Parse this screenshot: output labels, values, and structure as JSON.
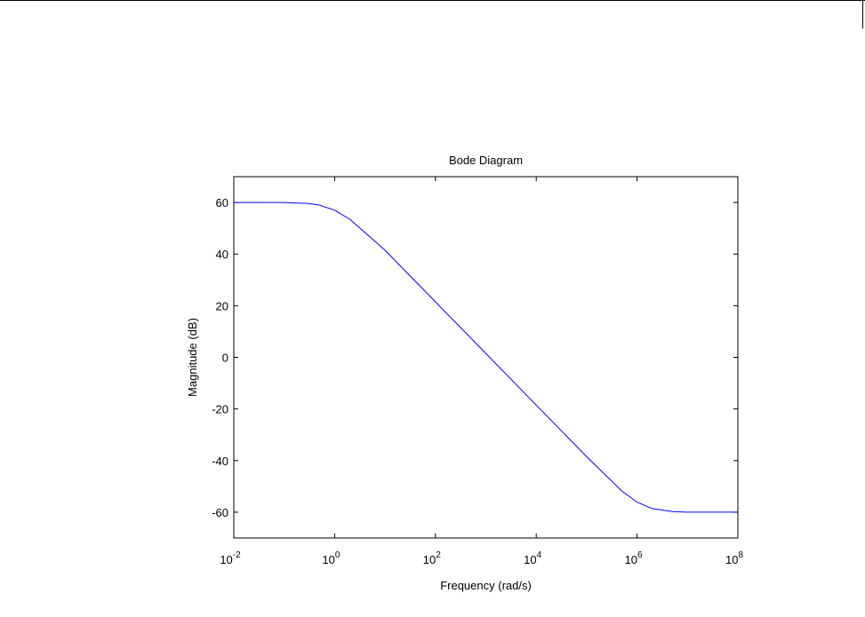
{
  "chart_data": {
    "type": "line",
    "title": "Bode Diagram",
    "xlabel": "Frequency  (rad/s)",
    "ylabel": "Magnitude (dB)",
    "xscale": "log",
    "xlim_exponent": [
      -2,
      8
    ],
    "ylim": [
      -70,
      70
    ],
    "grid": false,
    "x_ticks": [
      {
        "base": "10",
        "exp": "-2",
        "value": 0.01
      },
      {
        "base": "10",
        "exp": "0",
        "value": 1
      },
      {
        "base": "10",
        "exp": "2",
        "value": 100
      },
      {
        "base": "10",
        "exp": "4",
        "value": 10000
      },
      {
        "base": "10",
        "exp": "6",
        "value": 1000000
      },
      {
        "base": "10",
        "exp": "8",
        "value": 100000000
      }
    ],
    "y_ticks": [
      "60",
      "40",
      "20",
      "0",
      "-20",
      "-40",
      "-60"
    ],
    "series": [
      {
        "color": "#0000ff",
        "x": [
          0.01,
          0.1,
          0.3,
          0.5,
          1,
          2,
          3,
          10,
          100,
          1000,
          10000,
          100000,
          300000,
          500000,
          1000000,
          2000000,
          5000000,
          10000000,
          100000000
        ],
        "y": [
          60,
          60,
          59.6,
          59,
          57,
          53.5,
          50.5,
          41.5,
          21.5,
          1.5,
          -18.5,
          -38.5,
          -47.6,
          -51.8,
          -56.1,
          -58.6,
          -59.8,
          -60,
          -60
        ]
      }
    ]
  }
}
